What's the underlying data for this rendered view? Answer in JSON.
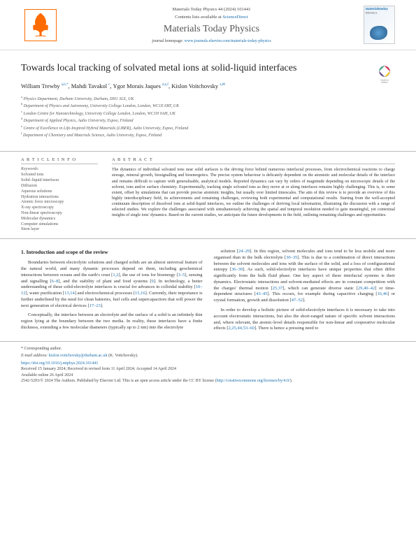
{
  "header": {
    "journal_ref": "Materials Today Physics 44 (2024) 101441",
    "contents_line": "Contents lists available at",
    "sciencedirect": "ScienceDirect",
    "journal_name": "Materials Today Physics",
    "homepage_label": "journal homepage:",
    "homepage_url": "www.journals.elsevier.com/materials-today-physics",
    "cover_title": "materialstoday",
    "cover_sub": "PHYSICS"
  },
  "title": "Towards local tracking of solvated metal ions at solid-liquid interfaces",
  "authors_html": "William Trewby <span class='sup'>a,b,*</span>, Mahdi Tavakol <span class='sup'>c</span>, Ygor Morais Jaques <span class='sup'>d,e,f</span>, Kislon Voïtchovsky <span class='sup'>a,<span class='env'>✉</span></span>",
  "affiliations": [
    {
      "sup": "a",
      "text": "Physics Department, Durham University, Durham, DH1 3LE, UK"
    },
    {
      "sup": "b",
      "text": "Department of Physics and Astronomy, University College London, London, WC1E 6BT, UK"
    },
    {
      "sup": "c",
      "text": "London Centre for Nanotechnology, University College London, London, WC1H 0AH, UK"
    },
    {
      "sup": "d",
      "text": "Department of Applied Physics, Aalto University, Espoo, Finland"
    },
    {
      "sup": "e",
      "text": "Centre of Excellence in Life-Inspired Hybrid Materials (LIBER), Aalto University, Espoo, Finland"
    },
    {
      "sup": "f",
      "text": "Department of Chemistry and Materials Science, Aalto University, Espoo, Finland"
    }
  ],
  "article_info": {
    "head": "A R T I C L E  I N F O",
    "keywords_head": "Keywords:",
    "keywords": "Solvated ions\nSolid–liquid interfaces\nDiffusion\nAqueous solutions\nHydration interactions\nAtomic force microscopy\nX-ray spectroscopy\nNon-linear spectroscopy\nMolecular dynamics\nComputer simulations\nStern layer"
  },
  "abstract": {
    "head": "A B S T R A C T",
    "text": "The dynamics of individual solvated ions near solid surfaces is the driving force behind numerous interfacial processes, from electrochemical reactions to charge storage, mineral growth, biosignalling and bioenergetics. The precise system behaviour is delicately dependent on the atomistic and molecular details of the interface and remains difficult to capture with generalisable, analytical models. Reported dynamics can vary by orders of magnitude depending on microscopic details of the solvent, ions and/or surface chemistry. Experimentally, tracking single solvated ions as they move at or along interfaces remains highly challenging. This is, to some extent, offset by simulations that can provide precise atomistic insights, but usually over limited timescales. The aim of this review is to provide an overview of this highly interdisciplinary field, its achievements and remaining challenges, reviewing both experimental and computational results. Starting from the well-accepted continuum description of dissolved ions at solid-liquid interfaces, we outline the challenges of deriving local information, illustrating the discussion with a range of selected studies. We explore the challenges associated with simultaneously achieving the spatial and temporal resolution needed to gain meaningful, yet contextual insights of single ions' dynamics. Based on the current studies, we anticipate the future developments in the field, outlining remaining challenges and opportunities."
  },
  "section1": {
    "head": "1. Introduction and scope of the review",
    "p1_pre": "Boundaries between electrolytic solutions and charged solids are an almost universal feature of the natural world, and many dynamic processes depend on them, including geochemical interactions between oceans and the earth's crust [",
    "r1": "1,2",
    "p1_mid1": "], the use of ions for bioenergy [",
    "r2": "3–5",
    "p1_mid2": "], sensing and signalling [",
    "r3": "6–8",
    "p1_mid3": "], and the stability of plant and food systems [",
    "r4": "9",
    "p1_mid4": "]. In technology, a better understanding of these solid-electrolyte interfaces is crucial for advances in colloidal stability [",
    "r5": "10–12",
    "p1_mid5": "], water purification [",
    "r6": "13,14",
    "p1_mid6": "] and electrochemical processes [",
    "r7": "15,16",
    "p1_mid7": "]. Currently, their importance is further underlined by the need for clean batteries, fuel cells and supercapacitors that will power the next generation of electrical devices [",
    "r8": "17–23",
    "p1_end": "].",
    "p2": "Conceptually, the interface between an electrolyte and the surface of a solid is an infinitely thin region lying at the boundary between the two media. In reality, these interfaces have a finite thickness, extending a few molecular diameters (typically up to 2 nm) into the electrolyte"
  },
  "col2": {
    "p1_pre": "solution [",
    "r1": "24–29",
    "p1_mid1": "]. In this region, solvent molecules and ions tend to be less mobile and more organised than in the bulk electrolyte [",
    "r2": "30–35",
    "p1_mid2": "]. This is due to a combination of direct interactions between the solvent molecules and ions with the surface of the solid, and a loss of configurational entropy [",
    "r3": "36–39",
    "p1_mid3": "]. As such, solid-electrolyte interfaces have unique properties that often differ significantly from the bulk fluid phase. One key aspect of these interfacial systems is their dynamics. Electrostatic interactions and solvent-mediated effects are in constant competition with the charges' thermal motion [",
    "r4": "25,37",
    "p1_mid4": "], which can generate diverse static [",
    "r5": "29,40–42",
    "p1_mid5": "] or time-dependent structures [",
    "r6": "43–45",
    "p1_mid6": "]. This occurs, for example during capacitive charging [",
    "r7": "16,46",
    "p1_mid7": "] or crystal formation, growth and dissolution [",
    "r8": "47–52",
    "p1_end": "].",
    "p2_pre": "In order to develop a holistic picture of solid-electrolyte interfaces it is necessary to take into account electrostatic interactions, but also the short-ranged nature of specific solvent interactions and, where relevant, the atomic-level details responsible for non-linear and cooperative molecular effects [",
    "r9": "2,25,44,53–60",
    "p2_end": "]. There is hence a pressing need to"
  },
  "footer": {
    "corr_label": "* Corresponding author.",
    "email_label": "E-mail address:",
    "email": "kislon.voitchovsky@durham.ac.uk",
    "email_who": "(K. Voïtchovsky).",
    "doi": "https://doi.org/10.1016/j.mtphys.2024.101441",
    "received": "Received 15 January 2024; Received in revised form 11 April 2024; Accepted 14 April 2024",
    "available": "Available online 26 April 2024",
    "copyright_pre": "2542-5293/© 2024 The Authors. Published by Elsevier Ltd. This is an open access article under the CC BY license (",
    "cc_url": "http://creativecommons.org/licenses/by/4.0/",
    "copyright_post": ")."
  },
  "colors": {
    "link": "#1a6faf",
    "text": "#333",
    "border": "#bbb",
    "elsevier_orange": "#ff6b00"
  }
}
